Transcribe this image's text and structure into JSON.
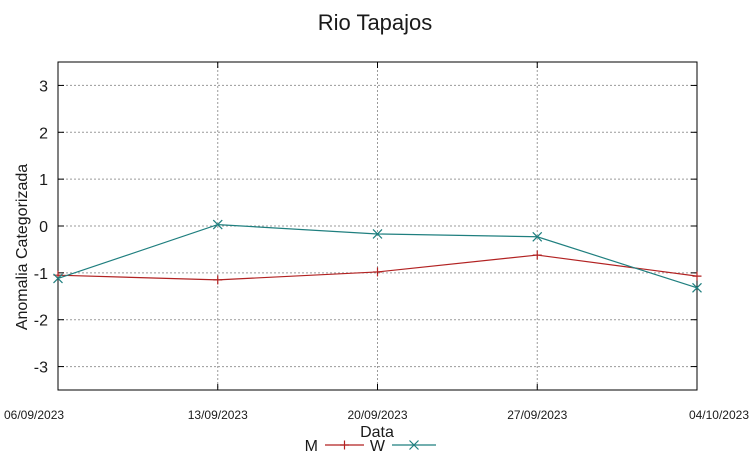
{
  "chart_data": {
    "type": "line",
    "title": "Rio Tapajos",
    "xlabel": "Data",
    "ylabel": "Anomalia Categorizada",
    "x": [
      "06/09/2023",
      "13/09/2023",
      "20/09/2023",
      "27/09/2023",
      "04/10/2023"
    ],
    "ylim": [
      -3.5,
      3.5
    ],
    "yticks": [
      -3,
      -2,
      -1,
      0,
      1,
      2,
      3
    ],
    "grid": true,
    "legend_position": "bottom-center",
    "series": [
      {
        "name": "M",
        "values": [
          -1.05,
          -1.15,
          -0.98,
          -0.62,
          -1.07
        ],
        "color": "#b22222",
        "marker": "plus"
      },
      {
        "name": "W",
        "values": [
          -1.12,
          0.03,
          -0.17,
          -0.23,
          -1.32
        ],
        "color": "#1f7f7f",
        "marker": "cross"
      }
    ]
  }
}
